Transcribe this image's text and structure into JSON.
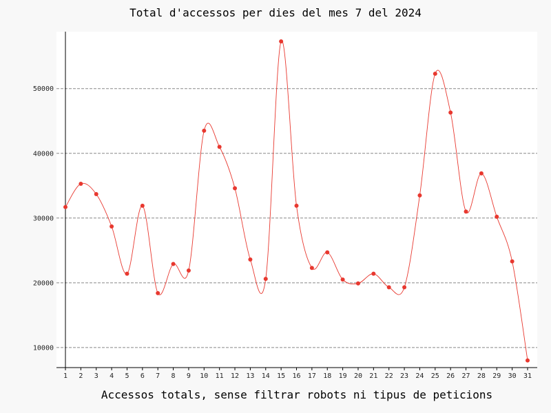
{
  "chart_data": {
    "type": "line",
    "title": "Total d'accessos per dies del mes 7 del 2024",
    "xlabel": "Accessos totals, sense filtrar robots ni tipus de peticions",
    "ylabel": "",
    "x": [
      1,
      2,
      3,
      4,
      5,
      6,
      7,
      8,
      9,
      10,
      11,
      12,
      13,
      14,
      15,
      16,
      17,
      18,
      19,
      20,
      21,
      22,
      23,
      24,
      25,
      26,
      27,
      28,
      29,
      30,
      31
    ],
    "series": [
      {
        "values": [
          31700,
          35300,
          33700,
          28700,
          21400,
          31900,
          18400,
          22900,
          21900,
          43500,
          41000,
          34600,
          23600,
          20600,
          57300,
          31900,
          22300,
          24700,
          20500,
          19900,
          21400,
          19300,
          19300,
          33500,
          52300,
          46300,
          31000,
          36900,
          30200,
          23300,
          8000
        ],
        "color": "#e8382f"
      }
    ],
    "yticks": [
      10000,
      20000,
      30000,
      40000,
      50000
    ],
    "ylim": [
      6900,
      58800
    ],
    "grid": "horizontal dashed",
    "smooth": true
  }
}
